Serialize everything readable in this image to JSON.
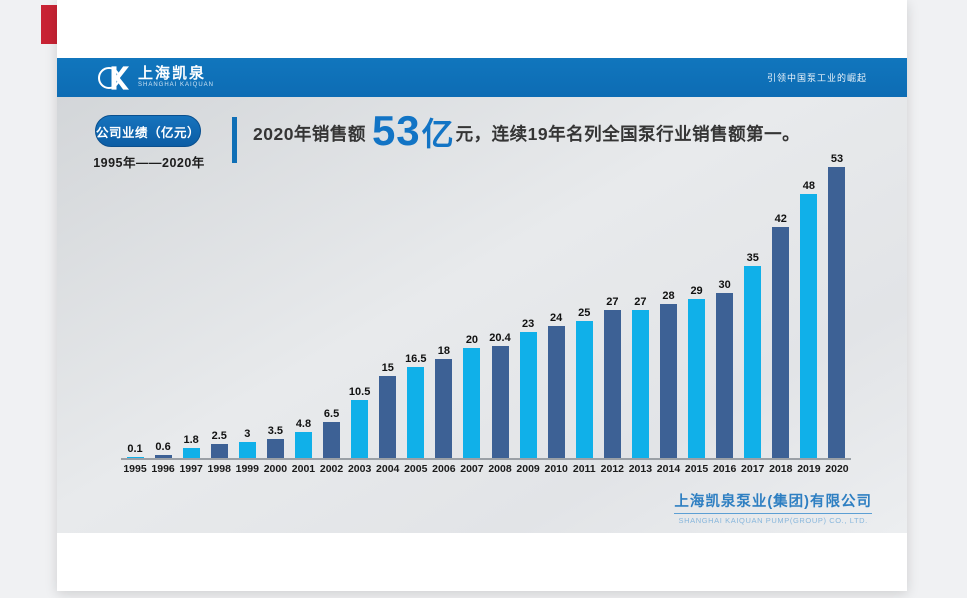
{
  "page": {
    "background": "#f0f1f3"
  },
  "accent": {
    "red_mark_color": "#c82334"
  },
  "header": {
    "bg": "#0d6cb4",
    "logo": {
      "icon": "kaiquan-logo-icon",
      "cn": "上海凯泉",
      "en": "SHANGHAI KAIQUAN"
    },
    "slogan": "引领中国泵工业的崛起"
  },
  "badge": {
    "label": "公司业绩（亿元）",
    "range": "1995年——2020年"
  },
  "headline": {
    "prefix": "2020年销售额",
    "num": "53",
    "unit": "亿",
    "suffix": "元，连续19年名列全国泵行业销售额第一。",
    "highlight_color": "#1274c5"
  },
  "footer": {
    "company_cn": "上海凯泉泵业(集团)有限公司",
    "company_en": "SHANGHAI KAIQUAN PUMP(GROUP) CO., LTD."
  },
  "colors": {
    "header_blue": "#0d6cb4",
    "bar_dark": "#3d6195",
    "bar_light": "#10b0e9",
    "axis_gray": "#9aa0a6",
    "title_text": "#353535"
  },
  "chart_data": {
    "type": "bar",
    "title": "公司业绩（亿元）",
    "subtitle": "1995年——2020年",
    "unit": "亿元",
    "categories": [
      1995,
      1996,
      1997,
      1998,
      1999,
      2000,
      2001,
      2002,
      2003,
      2004,
      2005,
      2006,
      2007,
      2008,
      2009,
      2010,
      2011,
      2012,
      2013,
      2014,
      2015,
      2016,
      2017,
      2018,
      2019,
      2020
    ],
    "values": [
      0.1,
      0.6,
      1.8,
      2.5,
      3,
      3.5,
      4.8,
      6.5,
      10.5,
      15,
      16.5,
      18,
      20,
      20.4,
      23,
      24,
      25,
      27,
      27,
      28,
      29,
      30,
      35,
      42,
      48,
      53
    ],
    "value_labels": [
      "0.1",
      "0.6",
      "1.8",
      "2.5",
      "3",
      "3.5",
      "4.8",
      "6.5",
      "10.5",
      "15",
      "16.5",
      "18",
      "20",
      "20.4",
      "23",
      "24",
      "25",
      "27",
      "27",
      "28",
      "29",
      "30",
      "35",
      "42",
      "48",
      "53"
    ],
    "xlabel": "",
    "ylabel": "",
    "ylim": [
      0,
      55
    ],
    "grid": false,
    "legend": false,
    "data_labels": "above bars",
    "bar_colors": {
      "light": "#10b0e9",
      "dark": "#3d6195",
      "rule": "odd years light blue, even years dark slate blue"
    }
  }
}
